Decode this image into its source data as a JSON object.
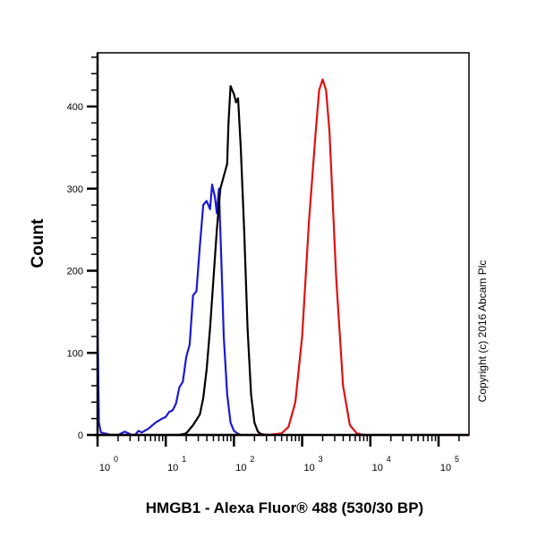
{
  "chart_data": {
    "type": "line",
    "subtype": "flow-cytometry-histogram",
    "title": "",
    "xlabel": "HMGB1 - Alexa Fluor® 488 (530/30 BP)",
    "ylabel": "Count",
    "xscale": "log",
    "x_tick_labels": [
      "10^0",
      "10^1",
      "10^2",
      "10^3",
      "10^4",
      "10^5"
    ],
    "x_ticks_log10": [
      0,
      1,
      2,
      3,
      4,
      5
    ],
    "xlim_log10": [
      0,
      5.45
    ],
    "y_tick_labels": [
      "0",
      "100",
      "200",
      "300",
      "400"
    ],
    "y_ticks": [
      0,
      100,
      200,
      300,
      400
    ],
    "ylim": [
      0,
      465
    ],
    "grid": false,
    "legend": null,
    "annotation": "Copyright (c) 2016 Abcam Plc",
    "series": [
      {
        "name": "blue",
        "color": "#1a1ad6",
        "points_log10_x": [
          0.0,
          0.02,
          0.05,
          0.1,
          0.2,
          0.3,
          0.4,
          0.5,
          0.55,
          0.6,
          0.65,
          0.75,
          0.85,
          0.95,
          1.0,
          1.05,
          1.1,
          1.15,
          1.2,
          1.25,
          1.3,
          1.35,
          1.4,
          1.45,
          1.5,
          1.55,
          1.6,
          1.65,
          1.68,
          1.72,
          1.75,
          1.78,
          1.82,
          1.85,
          1.9,
          1.95,
          2.0,
          2.05,
          2.1
        ],
        "values": [
          140,
          15,
          3,
          2,
          0,
          0,
          4,
          0,
          0,
          5,
          3,
          8,
          15,
          20,
          22,
          28,
          30,
          38,
          58,
          65,
          95,
          110,
          170,
          175,
          230,
          280,
          285,
          275,
          305,
          290,
          270,
          300,
          200,
          120,
          50,
          15,
          5,
          2,
          0
        ]
      },
      {
        "name": "black",
        "color": "#000000",
        "points_log10_x": [
          1.2,
          1.3,
          1.4,
          1.5,
          1.55,
          1.6,
          1.65,
          1.7,
          1.75,
          1.8,
          1.85,
          1.9,
          1.92,
          1.95,
          2.0,
          2.03,
          2.06,
          2.1,
          2.15,
          2.2,
          2.25,
          2.3,
          2.35,
          2.4,
          2.5
        ],
        "values": [
          0,
          2,
          12,
          25,
          45,
          80,
          130,
          190,
          250,
          300,
          315,
          330,
          380,
          425,
          415,
          405,
          410,
          350,
          250,
          130,
          50,
          15,
          4,
          1,
          0
        ]
      },
      {
        "name": "red",
        "color": "#e01010",
        "points_log10_x": [
          0,
          2.5,
          2.7,
          2.8,
          2.9,
          3.0,
          3.1,
          3.2,
          3.25,
          3.3,
          3.35,
          3.4,
          3.45,
          3.5,
          3.6,
          3.7,
          3.8,
          3.9,
          5.45
        ],
        "values": [
          0,
          0,
          2,
          10,
          40,
          120,
          260,
          370,
          420,
          433,
          420,
          370,
          280,
          190,
          60,
          12,
          2,
          0,
          0
        ]
      }
    ]
  },
  "axes": {
    "ylabel": "Count",
    "xlabel": "HMGB1 - Alexa Fluor® 488 (530/30 BP)",
    "copyright": "Copyright (c) 2016 Abcam Plc",
    "y_labels": [
      "0",
      "100",
      "200",
      "300",
      "400"
    ],
    "x_base": "10",
    "x_exps": [
      "0",
      "1",
      "2",
      "3",
      "4",
      "5"
    ]
  }
}
